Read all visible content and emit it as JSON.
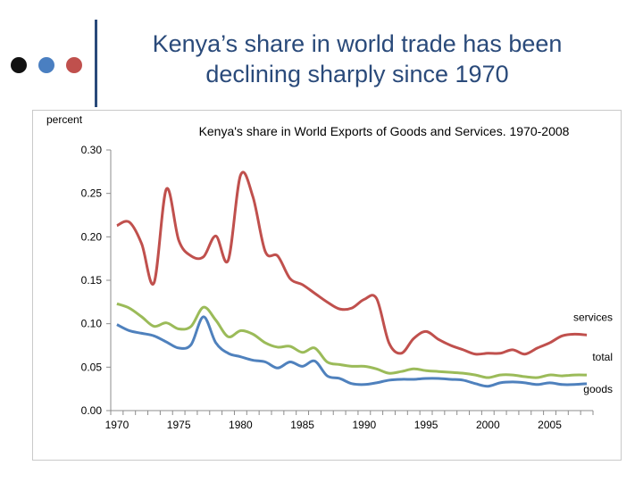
{
  "slide": {
    "title_line1": "Kenya’s share in world trade has been",
    "title_line2": "declining sharply since 1970",
    "dot_colors": [
      "#111111",
      "#4a7fc1",
      "#c0504d"
    ],
    "bar_color": "#2a4a7a"
  },
  "chart_data": {
    "type": "line",
    "title": "Kenya's share in World Exports of Goods and Services. 1970-2008",
    "ylabel": "percent",
    "xlabel": "",
    "ylim": [
      0,
      0.3
    ],
    "xlim": [
      1970,
      2008
    ],
    "y_ticks": [
      "0.00",
      "0.05",
      "0.10",
      "0.15",
      "0.20",
      "0.25",
      "0.30"
    ],
    "x_ticks": [
      "1970",
      "1975",
      "1980",
      "1985",
      "1990",
      "1995",
      "2000",
      "2005"
    ],
    "x": [
      1970,
      1971,
      1972,
      1973,
      1974,
      1975,
      1976,
      1977,
      1978,
      1979,
      1980,
      1981,
      1982,
      1983,
      1984,
      1985,
      1986,
      1987,
      1988,
      1989,
      1990,
      1991,
      1992,
      1993,
      1994,
      1995,
      1996,
      1997,
      1998,
      1999,
      2000,
      2001,
      2002,
      2003,
      2004,
      2005,
      2006,
      2007,
      2008
    ],
    "grid": false,
    "legend": "inline labels at line ends",
    "series": [
      {
        "name": "services",
        "color": "#c0504d",
        "values": [
          0.213,
          0.217,
          0.192,
          0.147,
          0.255,
          0.196,
          0.178,
          0.177,
          0.201,
          0.173,
          0.271,
          0.246,
          0.183,
          0.178,
          0.152,
          0.145,
          0.135,
          0.125,
          0.117,
          0.118,
          0.128,
          0.129,
          0.078,
          0.066,
          0.083,
          0.091,
          0.082,
          0.075,
          0.07,
          0.065,
          0.066,
          0.066,
          0.07,
          0.065,
          0.072,
          0.078,
          0.086,
          0.088,
          0.087
        ]
      },
      {
        "name": "total",
        "color": "#9bbb59",
        "values": [
          0.123,
          0.118,
          0.108,
          0.097,
          0.101,
          0.094,
          0.097,
          0.119,
          0.104,
          0.085,
          0.092,
          0.088,
          0.078,
          0.073,
          0.074,
          0.067,
          0.072,
          0.056,
          0.053,
          0.051,
          0.051,
          0.048,
          0.043,
          0.045,
          0.048,
          0.046,
          0.045,
          0.044,
          0.043,
          0.041,
          0.038,
          0.041,
          0.041,
          0.039,
          0.038,
          0.041,
          0.04,
          0.041,
          0.041
        ]
      },
      {
        "name": "goods",
        "color": "#4f81bd",
        "values": [
          0.099,
          0.092,
          0.089,
          0.086,
          0.079,
          0.072,
          0.076,
          0.108,
          0.078,
          0.066,
          0.062,
          0.058,
          0.056,
          0.049,
          0.056,
          0.051,
          0.057,
          0.04,
          0.037,
          0.031,
          0.03,
          0.032,
          0.035,
          0.036,
          0.036,
          0.037,
          0.037,
          0.036,
          0.035,
          0.031,
          0.028,
          0.032,
          0.033,
          0.032,
          0.03,
          0.032,
          0.03,
          0.03,
          0.031
        ]
      }
    ]
  }
}
